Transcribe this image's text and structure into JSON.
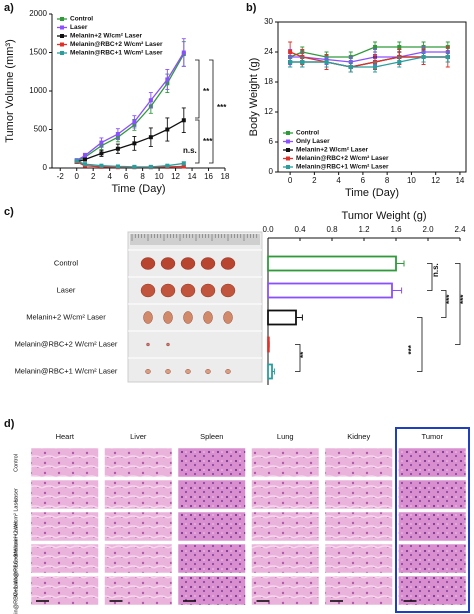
{
  "panel_labels": [
    "a)",
    "b)",
    "c)",
    "d)"
  ],
  "chart_data": [
    {
      "type": "line",
      "x_label": "Time (Day)",
      "y_label": "Tumor Volume (mm³)",
      "x": [
        0,
        1,
        3,
        5,
        7,
        9,
        11,
        13
      ],
      "xlim": [
        -3,
        18
      ],
      "xticks": [
        -2,
        0,
        2,
        4,
        6,
        8,
        10,
        12,
        14,
        16,
        18
      ],
      "ylim": [
        0,
        2000
      ],
      "yticks": [
        0,
        500,
        1000,
        1500,
        2000
      ],
      "legend": "upper left",
      "frame": false,
      "series": [
        {
          "name": "Control",
          "color": "#2e9a3a",
          "values": [
            90,
            140,
            290,
            400,
            560,
            800,
            1100,
            1480
          ],
          "errors": [
            20,
            30,
            50,
            60,
            70,
            90,
            120,
            160
          ]
        },
        {
          "name": "Laser",
          "color": "#8a4fff",
          "values": [
            100,
            160,
            330,
            440,
            600,
            880,
            1150,
            1500
          ],
          "errors": [
            20,
            30,
            60,
            70,
            80,
            100,
            130,
            180
          ]
        },
        {
          "name": "Melanin+2 W/cm² Laser",
          "color": "#111111",
          "values": [
            80,
            110,
            190,
            250,
            320,
            400,
            500,
            620
          ],
          "errors": [
            20,
            20,
            40,
            60,
            90,
            120,
            150,
            160
          ]
        },
        {
          "name": "Melanin@RBC+2 W/cm² Laser",
          "color": "#e0302a",
          "values": [
            80,
            30,
            15,
            10,
            10,
            10,
            15,
            20
          ],
          "errors": [
            20,
            10,
            5,
            5,
            5,
            5,
            5,
            10
          ]
        },
        {
          "name": "Melanin@RBC+1 W/cm² Laser",
          "color": "#2a9d9d",
          "values": [
            90,
            50,
            30,
            20,
            15,
            15,
            30,
            60
          ],
          "errors": [
            20,
            15,
            10,
            8,
            8,
            8,
            10,
            20
          ]
        }
      ],
      "annotations": [
        "**",
        "***",
        "***",
        "n.s."
      ]
    },
    {
      "type": "line",
      "x_label": "Time (Day)",
      "y_label": "Body Weight (g)",
      "x": [
        0,
        1,
        3,
        5,
        7,
        9,
        11,
        13
      ],
      "xlim": [
        -1,
        14.5
      ],
      "xticks": [
        0,
        2,
        4,
        6,
        8,
        10,
        12,
        14
      ],
      "ylim": [
        0,
        30
      ],
      "yticks": [
        0,
        6,
        12,
        18,
        24,
        30
      ],
      "legend": "lower left",
      "frame": true,
      "series": [
        {
          "name": "Control",
          "color": "#2e9a3a",
          "values": [
            23,
            24,
            23,
            23,
            25,
            25,
            25,
            25
          ],
          "errors": [
            1,
            1,
            1,
            1,
            1,
            1,
            1,
            1
          ]
        },
        {
          "name": "Only Laser",
          "color": "#8a4fff",
          "values": [
            23,
            23,
            22.5,
            22,
            23,
            23,
            24,
            24
          ],
          "errors": [
            1.5,
            1,
            1,
            1,
            1.5,
            1.5,
            1,
            1
          ]
        },
        {
          "name": "Melanin+2 W/cm² Laser",
          "color": "#111111",
          "values": [
            22,
            22,
            22,
            21,
            22,
            23,
            23,
            23
          ],
          "errors": [
            1,
            1,
            1,
            1,
            1,
            1,
            1,
            1
          ]
        },
        {
          "name": "Melanin@RBC+2 W/cm² Laser",
          "color": "#e0302a",
          "values": [
            24,
            23,
            22,
            21,
            22,
            23,
            23,
            23
          ],
          "errors": [
            2,
            1.5,
            1.5,
            1,
            1.5,
            1.5,
            1.5,
            2
          ]
        },
        {
          "name": "Melanin@RBC+1 W/cm² Laser",
          "color": "#2a9d9d",
          "values": [
            22,
            22,
            22,
            21,
            21,
            22,
            23,
            23
          ],
          "errors": [
            1,
            1,
            1,
            1,
            1,
            1,
            1,
            1
          ]
        }
      ]
    },
    {
      "type": "hbar",
      "title": "Tumor Weight (g)",
      "categories": [
        "Control",
        "Laser",
        "Melanin+2 W/cm² Laser",
        "Melanin@RBC+2 W/cm² Laser",
        "Melanin@RBC+1 W/cm² Laser"
      ],
      "values": [
        1.6,
        1.55,
        0.35,
        0.01,
        0.05
      ],
      "errors": [
        0.1,
        0.12,
        0.08,
        0.005,
        0.03
      ],
      "colors": [
        "#2e9a3a",
        "#8a4fff",
        "#111111",
        "#e0302a",
        "#2a9d9d"
      ],
      "xlim": [
        0,
        2.4
      ],
      "xticks": [
        {
          "value": 0,
          "label": "0.0"
        },
        0.4,
        0.8,
        1.2,
        1.6,
        {
          "value": 2,
          "label": "2.0"
        },
        2.4
      ],
      "annotations": [
        "n.s.",
        "***",
        "***",
        "***",
        "**"
      ]
    }
  ],
  "histology": {
    "columns": [
      "Heart",
      "Liver",
      "Spleen",
      "Lung",
      "Kidney",
      "Tumor"
    ],
    "rows": [
      "Control",
      "Laser",
      "Melanin+2 W/cm² Laser",
      "Melanin@RBC+2 W/cm² Laser",
      "Melanin@RBC+1 W/cm² Laser"
    ]
  }
}
